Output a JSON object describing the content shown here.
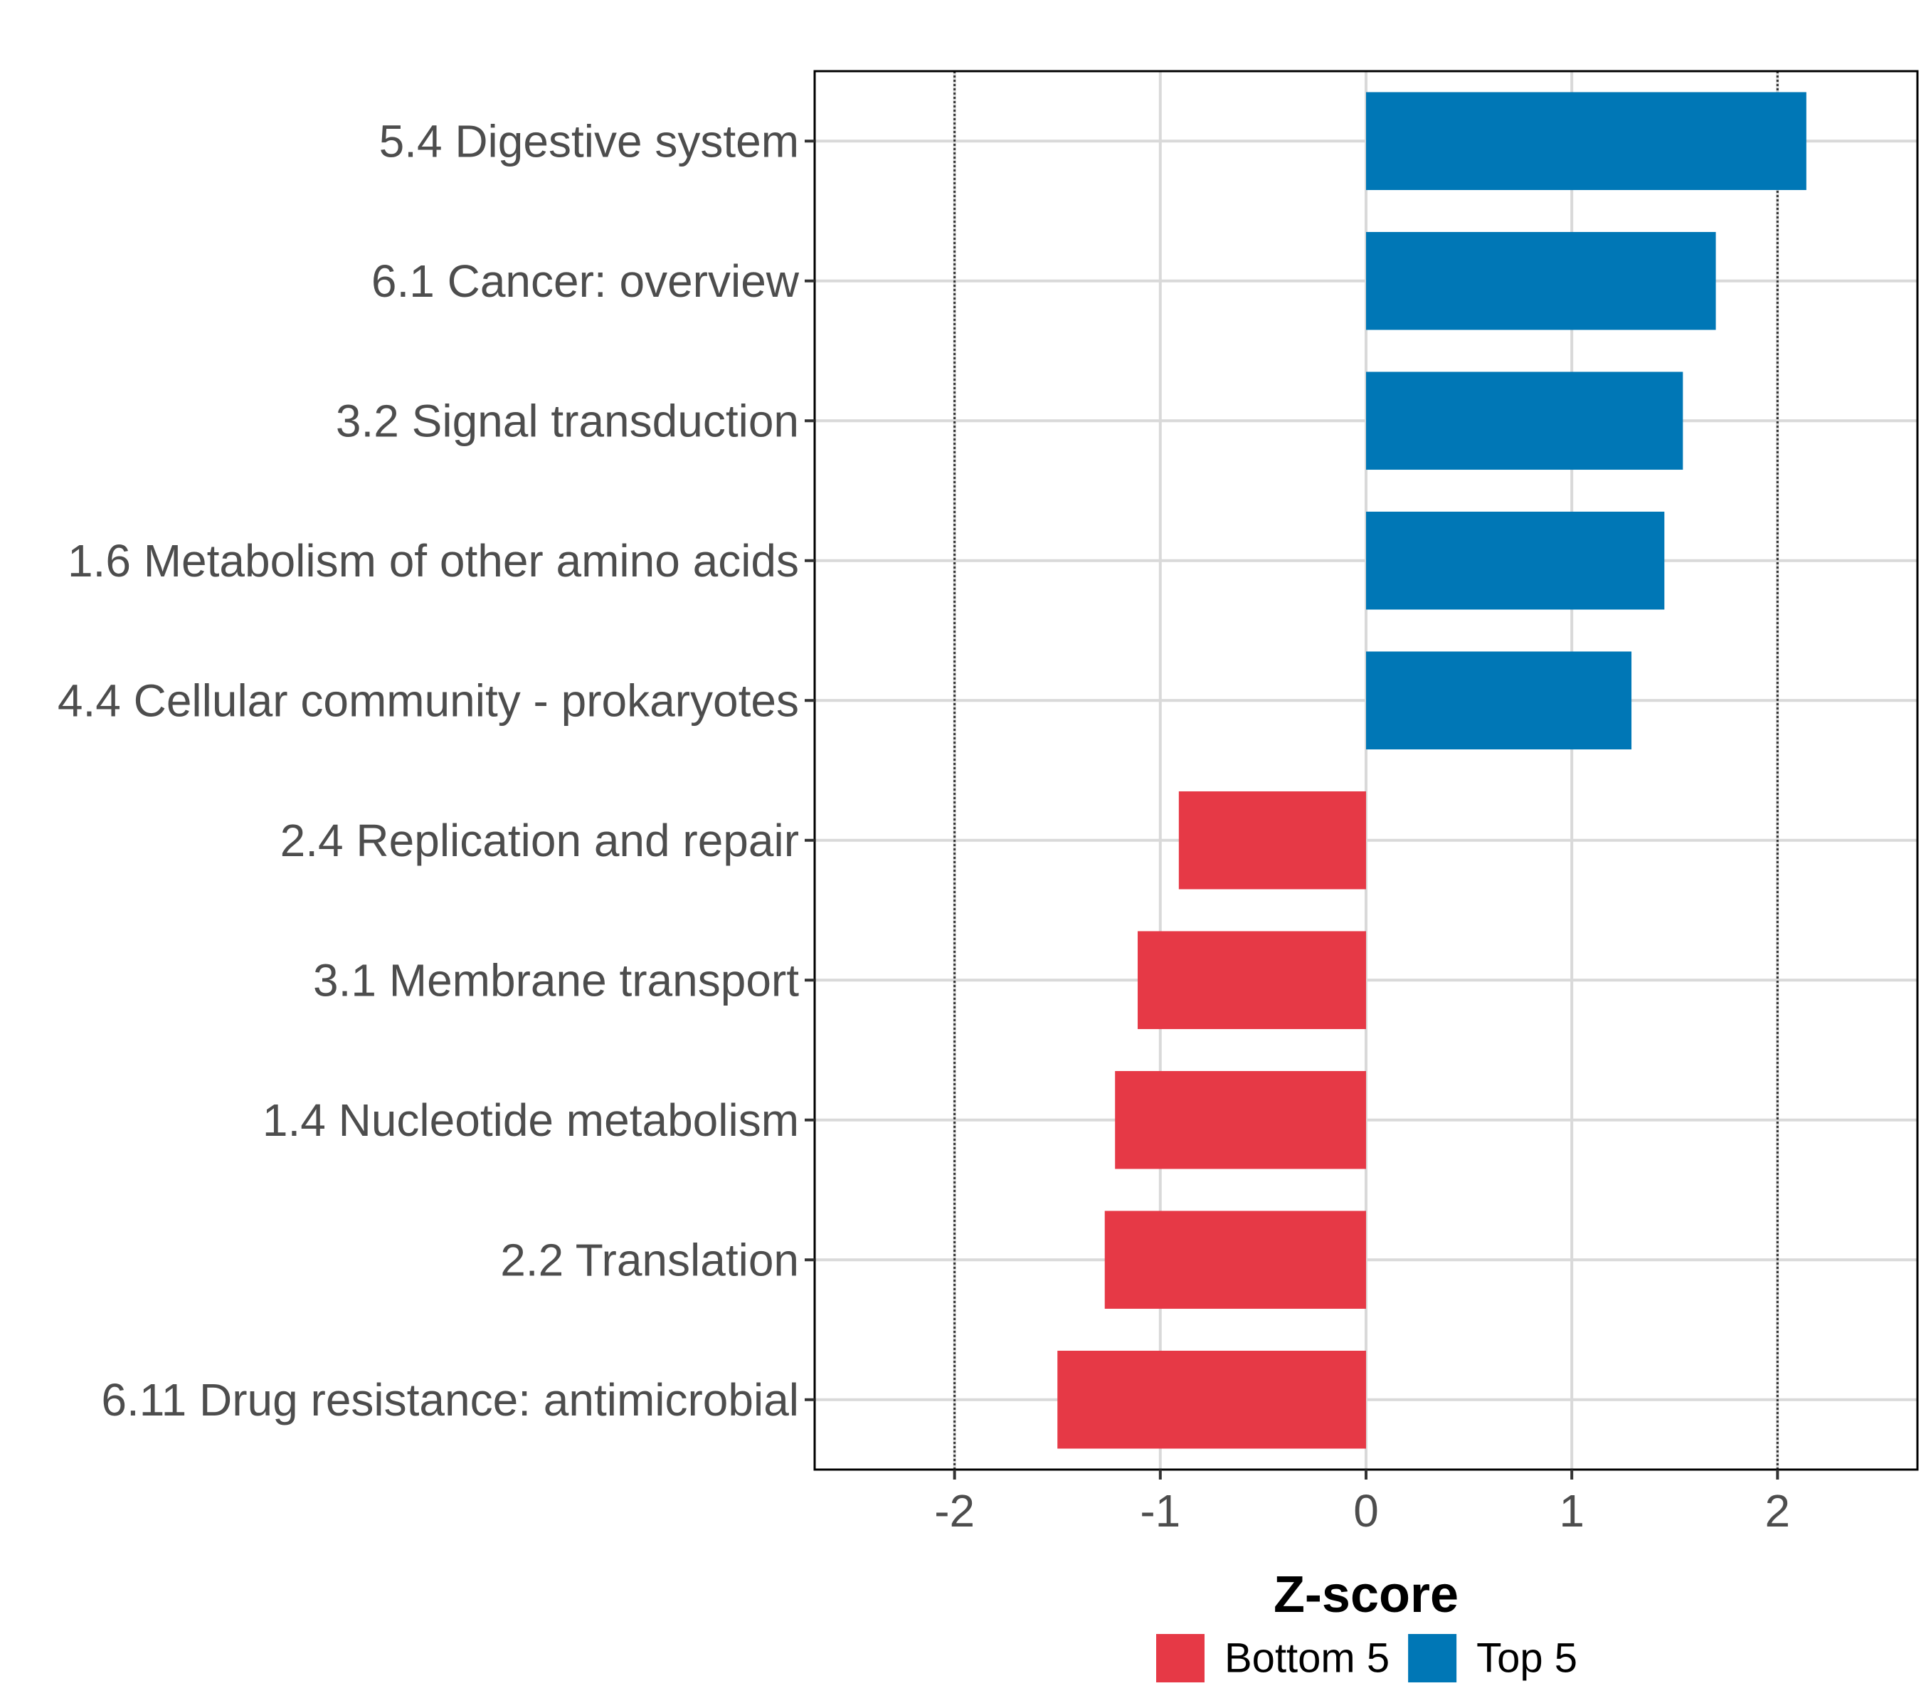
{
  "chart_data": {
    "type": "bar",
    "orientation": "horizontal",
    "categories": [
      "5.4 Digestive system",
      "6.1 Cancer: overview",
      "3.2 Signal transduction",
      "1.6 Metabolism of other amino acids",
      "4.4 Cellular community - prokaryotes",
      "2.4 Replication and repair",
      "3.1 Membrane transport",
      "1.4 Nucleotide metabolism",
      "2.2 Translation",
      "6.11 Drug resistance: antimicrobial"
    ],
    "values": [
      2.14,
      1.7,
      1.54,
      1.45,
      1.29,
      -0.91,
      -1.11,
      -1.22,
      -1.27,
      -1.5
    ],
    "groups": [
      "Top 5",
      "Top 5",
      "Top 5",
      "Top 5",
      "Top 5",
      "Bottom 5",
      "Bottom 5",
      "Bottom 5",
      "Bottom 5",
      "Bottom 5"
    ],
    "xlabel": "Z-score",
    "ylabel": "",
    "xlim": [
      -2.68,
      2.68
    ],
    "xticks": [
      -2,
      -1,
      0,
      1,
      2
    ],
    "xtick_labels": [
      "-2",
      "-1",
      "0",
      "1",
      "2"
    ],
    "reference_lines": [
      -2,
      2
    ],
    "grid": true,
    "legend": {
      "position": "bottom",
      "entries": [
        {
          "label": "Bottom 5",
          "color": "#E63946"
        },
        {
          "label": "Top 5",
          "color": "#0077B6"
        }
      ]
    }
  }
}
